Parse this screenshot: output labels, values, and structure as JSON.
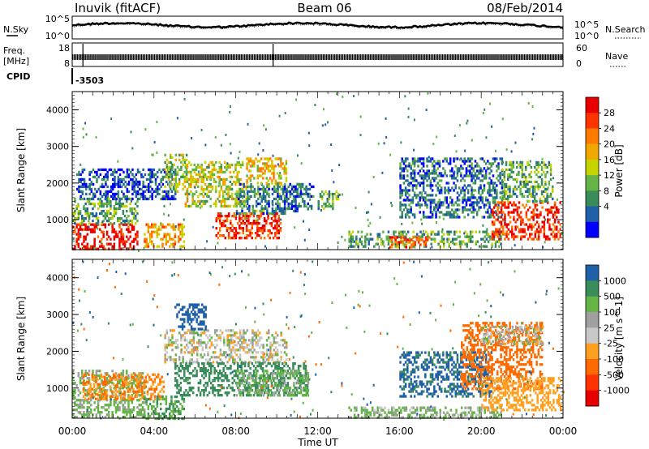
{
  "header": {
    "station": "Inuvik (fitACF)",
    "beam": "Beam 06",
    "date": "08/Feb/2014"
  },
  "panels": {
    "noise": {
      "left_label": "N.Sky",
      "right_label": "N.Search",
      "left_ticks": [
        "10^5",
        "10^0"
      ],
      "right_ticks": [
        "10^5",
        "10^0"
      ]
    },
    "freq": {
      "left_label_1": "Freq.",
      "left_label_2": "[MHz]",
      "left_ticks": [
        "18",
        "8"
      ],
      "right_label": "Nave",
      "right_ticks": [
        "60",
        "0"
      ]
    },
    "cpid": {
      "label": "CPID",
      "value": "-3503"
    }
  },
  "chart_data": [
    {
      "type": "heatmap",
      "name": "power",
      "ylabel": "Slant Range [km]",
      "xlabel": "Time UT",
      "x_ticks": [
        "00:00",
        "04:00",
        "08:00",
        "12:00",
        "16:00",
        "20:00",
        "00:00"
      ],
      "xlim_hours": [
        0,
        24
      ],
      "ylim_km": [
        180,
        4500
      ],
      "y_ticks": [
        1000,
        2000,
        3000,
        4000
      ],
      "colorbar": {
        "label": "Power [dB]",
        "ticks": [
          "28",
          "24",
          "20",
          "16",
          "12",
          "8",
          "4"
        ],
        "colors": [
          "#e80000",
          "#ff3300",
          "#ff7a00",
          "#f0a800",
          "#c8d400",
          "#64b446",
          "#3a8c5a",
          "#1f60a8",
          "#0000ff"
        ]
      },
      "echo_regions": [
        {
          "t0": 0.0,
          "t1": 3.2,
          "r0": 200,
          "r1": 900,
          "level": 28
        },
        {
          "t0": 0.0,
          "t1": 3.2,
          "r0": 900,
          "r1": 1600,
          "level": 12
        },
        {
          "t0": 0.2,
          "t1": 5.0,
          "r0": 1600,
          "r1": 2400,
          "level": 6
        },
        {
          "t0": 3.5,
          "t1": 5.5,
          "r0": 300,
          "r1": 900,
          "level": 20
        },
        {
          "t0": 4.5,
          "t1": 5.6,
          "r0": 1800,
          "r1": 2800,
          "level": 14
        },
        {
          "t0": 5.5,
          "t1": 8.5,
          "r0": 1400,
          "r1": 2600,
          "level": 16
        },
        {
          "t0": 7.0,
          "t1": 10.2,
          "r0": 500,
          "r1": 1200,
          "level": 26
        },
        {
          "t0": 8.0,
          "t1": 11.0,
          "r0": 1200,
          "r1": 2000,
          "level": 10
        },
        {
          "t0": 8.5,
          "t1": 10.5,
          "r0": 2000,
          "r1": 2700,
          "level": 18
        },
        {
          "t0": 10.0,
          "t1": 11.8,
          "r0": 1300,
          "r1": 2000,
          "level": 8
        },
        {
          "t0": 12.0,
          "t1": 13.0,
          "r0": 1300,
          "r1": 1800,
          "level": 12
        },
        {
          "t0": 13.5,
          "t1": 21.0,
          "r0": 250,
          "r1": 700,
          "level": 12
        },
        {
          "t0": 15.5,
          "t1": 17.5,
          "r0": 250,
          "r1": 550,
          "level": 24
        },
        {
          "t0": 16.0,
          "t1": 21.0,
          "r0": 1100,
          "r1": 2700,
          "level": 8
        },
        {
          "t0": 20.5,
          "t1": 23.9,
          "r0": 500,
          "r1": 1500,
          "level": 26
        },
        {
          "t0": 21.0,
          "t1": 23.5,
          "r0": 1500,
          "r1": 2600,
          "level": 12
        }
      ]
    },
    {
      "type": "heatmap",
      "name": "velocity",
      "ylabel": "Slant Range [km]",
      "xlabel": "Time UT",
      "x_ticks": [
        "00:00",
        "04:00",
        "08:00",
        "12:00",
        "16:00",
        "20:00",
        "00:00"
      ],
      "xlim_hours": [
        0,
        24
      ],
      "ylim_km": [
        180,
        4500
      ],
      "y_ticks": [
        1000,
        2000,
        3000,
        4000
      ],
      "colorbar": {
        "label": "Velocity [m s^-1]",
        "ticks": [
          "1000",
          "500",
          "100",
          "25",
          "-25",
          "-100",
          "-500",
          "-1000"
        ],
        "colors": [
          "#1f60a8",
          "#3a8c5a",
          "#64b446",
          "#a0a0a0",
          "#c8c8c8",
          "#ffa020",
          "#ff6a00",
          "#ff3300",
          "#e80000"
        ]
      },
      "echo_regions": [
        {
          "t0": 0.0,
          "t1": 3.5,
          "r0": 200,
          "r1": 1500,
          "level": 100
        },
        {
          "t0": 0.5,
          "t1": 4.5,
          "r0": 700,
          "r1": 1400,
          "level": -300
        },
        {
          "t0": 3.5,
          "t1": 5.5,
          "r0": 200,
          "r1": 800,
          "level": 300
        },
        {
          "t0": 4.5,
          "t1": 10.5,
          "r0": 1700,
          "r1": 2600,
          "level": 0
        },
        {
          "t0": 5.0,
          "t1": 11.5,
          "r0": 800,
          "r1": 1700,
          "level": 400
        },
        {
          "t0": 8.0,
          "t1": 11.5,
          "r0": 800,
          "r1": 1500,
          "level": 100
        },
        {
          "t0": 5.0,
          "t1": 6.5,
          "r0": 2600,
          "r1": 3300,
          "level": 900
        },
        {
          "t0": 13.5,
          "t1": 21.0,
          "r0": 200,
          "r1": 500,
          "level": 60
        },
        {
          "t0": 16.0,
          "t1": 20.5,
          "r0": 800,
          "r1": 2000,
          "level": 800
        },
        {
          "t0": 19.0,
          "t1": 23.0,
          "r0": 1000,
          "r1": 2800,
          "level": -400
        },
        {
          "t0": 20.0,
          "t1": 23.9,
          "r0": 400,
          "r1": 1300,
          "level": -200
        },
        {
          "t0": 20.0,
          "t1": 23.0,
          "r0": 2200,
          "r1": 2700,
          "level": 0
        }
      ]
    }
  ]
}
